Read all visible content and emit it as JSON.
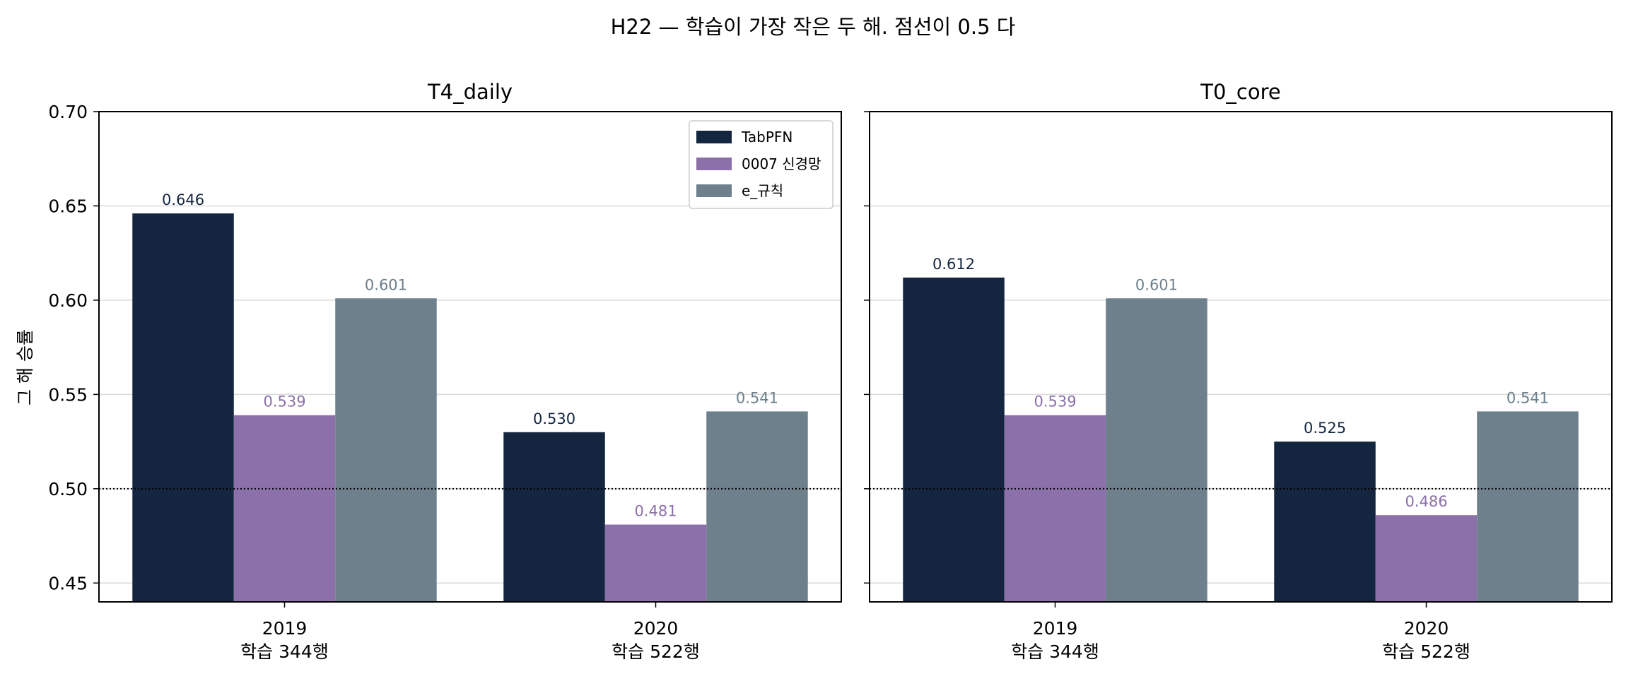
{
  "title": "H22 — 학습이 가장 작은 두 해. 점선이 0.5 다",
  "colors": {
    "TabPFN": "#14263f",
    "0007 신경망": "#8b70a9",
    "e_규칙": "#6d808c",
    "grid": "#d9d9d9",
    "axis": "#000000"
  },
  "chart_data": {
    "type": "bar",
    "title": "H22 — 학습이 가장 작은 두 해. 점선이 0.5 다",
    "ylabel": "그 해 승률",
    "ylim": [
      0.44,
      0.7
    ],
    "yticks": [
      "0.45",
      "0.50",
      "0.55",
      "0.60",
      "0.65",
      "0.70"
    ],
    "reference_line": 0.5,
    "grid": "horizontal",
    "legend": {
      "placement": "top-right of first panel",
      "entries": [
        "TabPFN",
        "0007 신경망",
        "e_규칙"
      ]
    },
    "panels": [
      {
        "title": "T4_daily",
        "categories": [
          {
            "year": "2019",
            "sub": "학습 344행"
          },
          {
            "year": "2020",
            "sub": "학습 522행"
          }
        ],
        "series": [
          {
            "name": "TabPFN",
            "values": [
              0.646,
              0.53
            ],
            "labels": [
              "0.646",
              "0.530"
            ]
          },
          {
            "name": "0007 신경망",
            "values": [
              0.539,
              0.481
            ],
            "labels": [
              "0.539",
              "0.481"
            ]
          },
          {
            "name": "e_규칙",
            "values": [
              0.601,
              0.541
            ],
            "labels": [
              "0.601",
              "0.541"
            ]
          }
        ]
      },
      {
        "title": "T0_core",
        "categories": [
          {
            "year": "2019",
            "sub": "학습 344행"
          },
          {
            "year": "2020",
            "sub": "학습 522행"
          }
        ],
        "series": [
          {
            "name": "TabPFN",
            "values": [
              0.612,
              0.525
            ],
            "labels": [
              "0.612",
              "0.525"
            ]
          },
          {
            "name": "0007 신경망",
            "values": [
              0.539,
              0.486
            ],
            "labels": [
              "0.539",
              "0.486"
            ]
          },
          {
            "name": "e_규칙",
            "values": [
              0.601,
              0.541
            ],
            "labels": [
              "0.601",
              "0.541"
            ]
          }
        ]
      }
    ]
  }
}
